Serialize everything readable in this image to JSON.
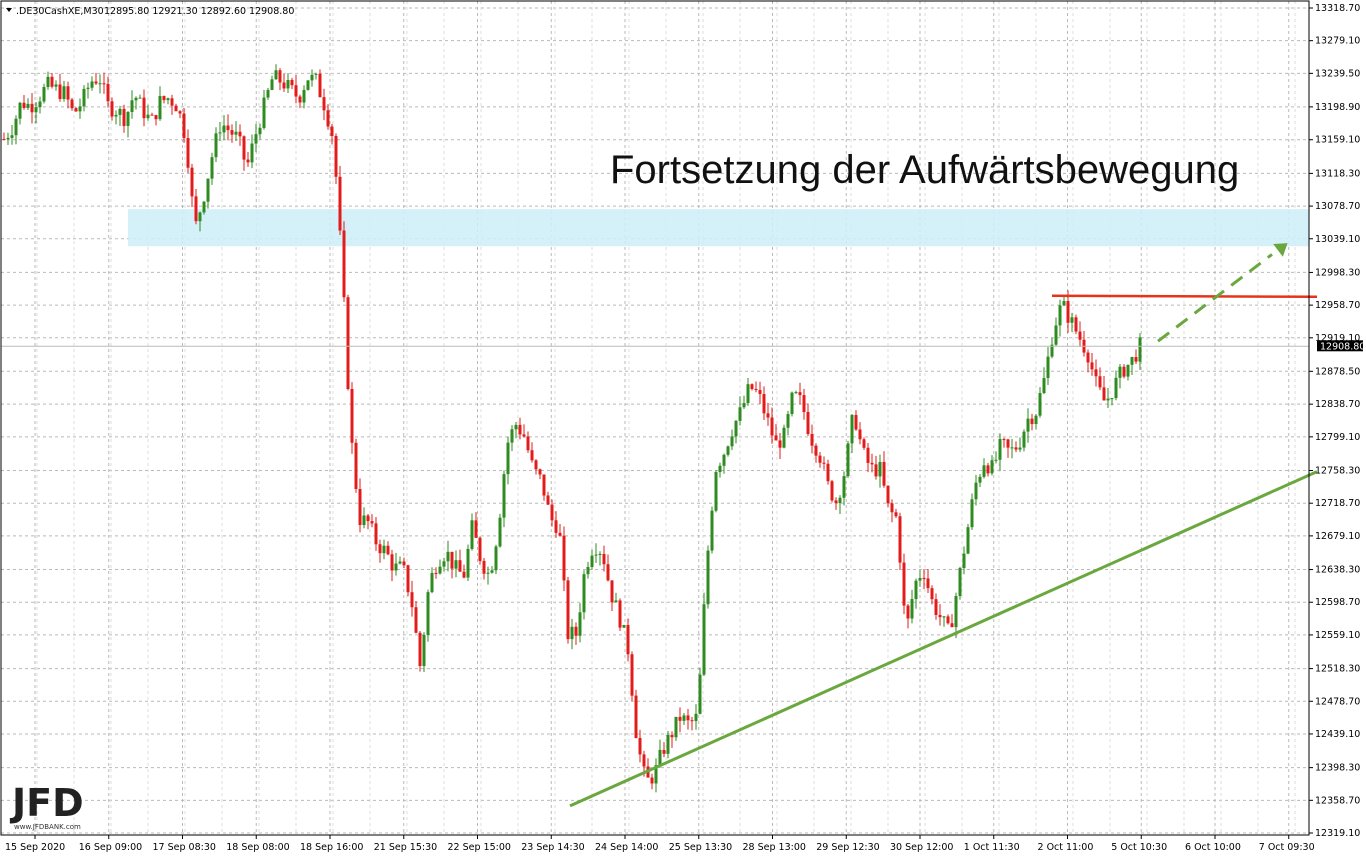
{
  "header": {
    "symbol_text": ".DE30CashXE,M30",
    "ohlc_text": "12895.80 12921.30 12892.60 12908.80"
  },
  "current_price_label": "12908.80",
  "logo": {
    "text": "JFD",
    "subtext": "www.JFDBANK.com"
  },
  "colors": {
    "bull": "#2e8b20",
    "bear": "#e21b1b",
    "trendline": "#6aa83f",
    "resistance": "#e8331c",
    "zone": "#cdeef9",
    "grid": "#b9b9b9",
    "frame": "#000000"
  },
  "chart_data": {
    "type": "candlestick",
    "title": "",
    "annotation": "Fortsetzung der Aufwärtsbewegung",
    "y_ticks": [
      "13318.70",
      "13279.10",
      "13239.50",
      "13198.90",
      "13159.10",
      "13118.30",
      "13078.70",
      "13039.10",
      "12998.30",
      "12958.70",
      "12919.10",
      "12878.50",
      "12838.70",
      "12799.10",
      "12758.30",
      "12718.70",
      "12679.10",
      "12638.30",
      "12598.70",
      "12559.10",
      "12518.30",
      "12478.70",
      "12439.10",
      "12398.30",
      "12358.70",
      "12319.10"
    ],
    "ylim": [
      12319.1,
      13318.7
    ],
    "x_ticks": [
      "15 Sep 2020",
      "16 Sep 09:00",
      "17 Sep 08:30",
      "18 Sep 08:00",
      "18 Sep 16:00",
      "21 Sep 15:30",
      "22 Sep 15:00",
      "23 Sep 14:30",
      "24 Sep 14:00",
      "25 Sep 13:30",
      "28 Sep 13:00",
      "29 Sep 12:30",
      "30 Sep 12:00",
      "1 Oct 11:30",
      "2 Oct 11:00",
      "5 Oct 10:30",
      "6 Oct 10:00",
      "7 Oct 09:30"
    ],
    "current_price": 12908.8,
    "support_zone": [
      13030,
      13075
    ],
    "resistance_level": 12970,
    "trendline": {
      "from": [
        "24 Sep 14:00",
        12352
      ],
      "to": [
        "7 Oct 09:30+",
        12757
      ]
    },
    "projection_arrow": {
      "from": 12915,
      "to": 13025
    },
    "anchors": [
      13160,
      13175,
      13205,
      13200,
      13210,
      13225,
      13220,
      13215,
      13190,
      13205,
      13230,
      13235,
      13200,
      13195,
      13185,
      13215,
      13195,
      13180,
      13205,
      13210,
      13200,
      13160,
      13050,
      13090,
      13140,
      13180,
      13170,
      13160,
      13125,
      13165,
      13200,
      13235,
      13230,
      13220,
      13210,
      13235,
      13230,
      13200,
      13160,
      13000,
      12800,
      12700,
      12695,
      12670,
      12660,
      12640,
      12640,
      12600,
      12520,
      12620,
      12650,
      12660,
      12640,
      12630,
      12690,
      12650,
      12630,
      12690,
      12790,
      12815,
      12800,
      12760,
      12745,
      12700,
      12690,
      12560,
      12560,
      12640,
      12670,
      12660,
      12610,
      12580,
      12540,
      12430,
      12380,
      12390,
      12420,
      12440,
      12460,
      12450,
      12460,
      12640,
      12760,
      12780,
      12810,
      12830,
      12860,
      12850,
      12820,
      12790,
      12800,
      12850,
      12840,
      12800,
      12780,
      12740,
      12720,
      12760,
      12830,
      12780,
      12760,
      12760,
      12710,
      12700,
      12560,
      12620,
      12640,
      12600,
      12580,
      12560,
      12620,
      12680,
      12740,
      12770,
      12760,
      12790,
      12780,
      12790,
      12820,
      12830,
      12870,
      12930,
      12960,
      12940,
      12920,
      12900,
      12860,
      12840,
      12860,
      12880,
      12890,
      12909
    ]
  }
}
